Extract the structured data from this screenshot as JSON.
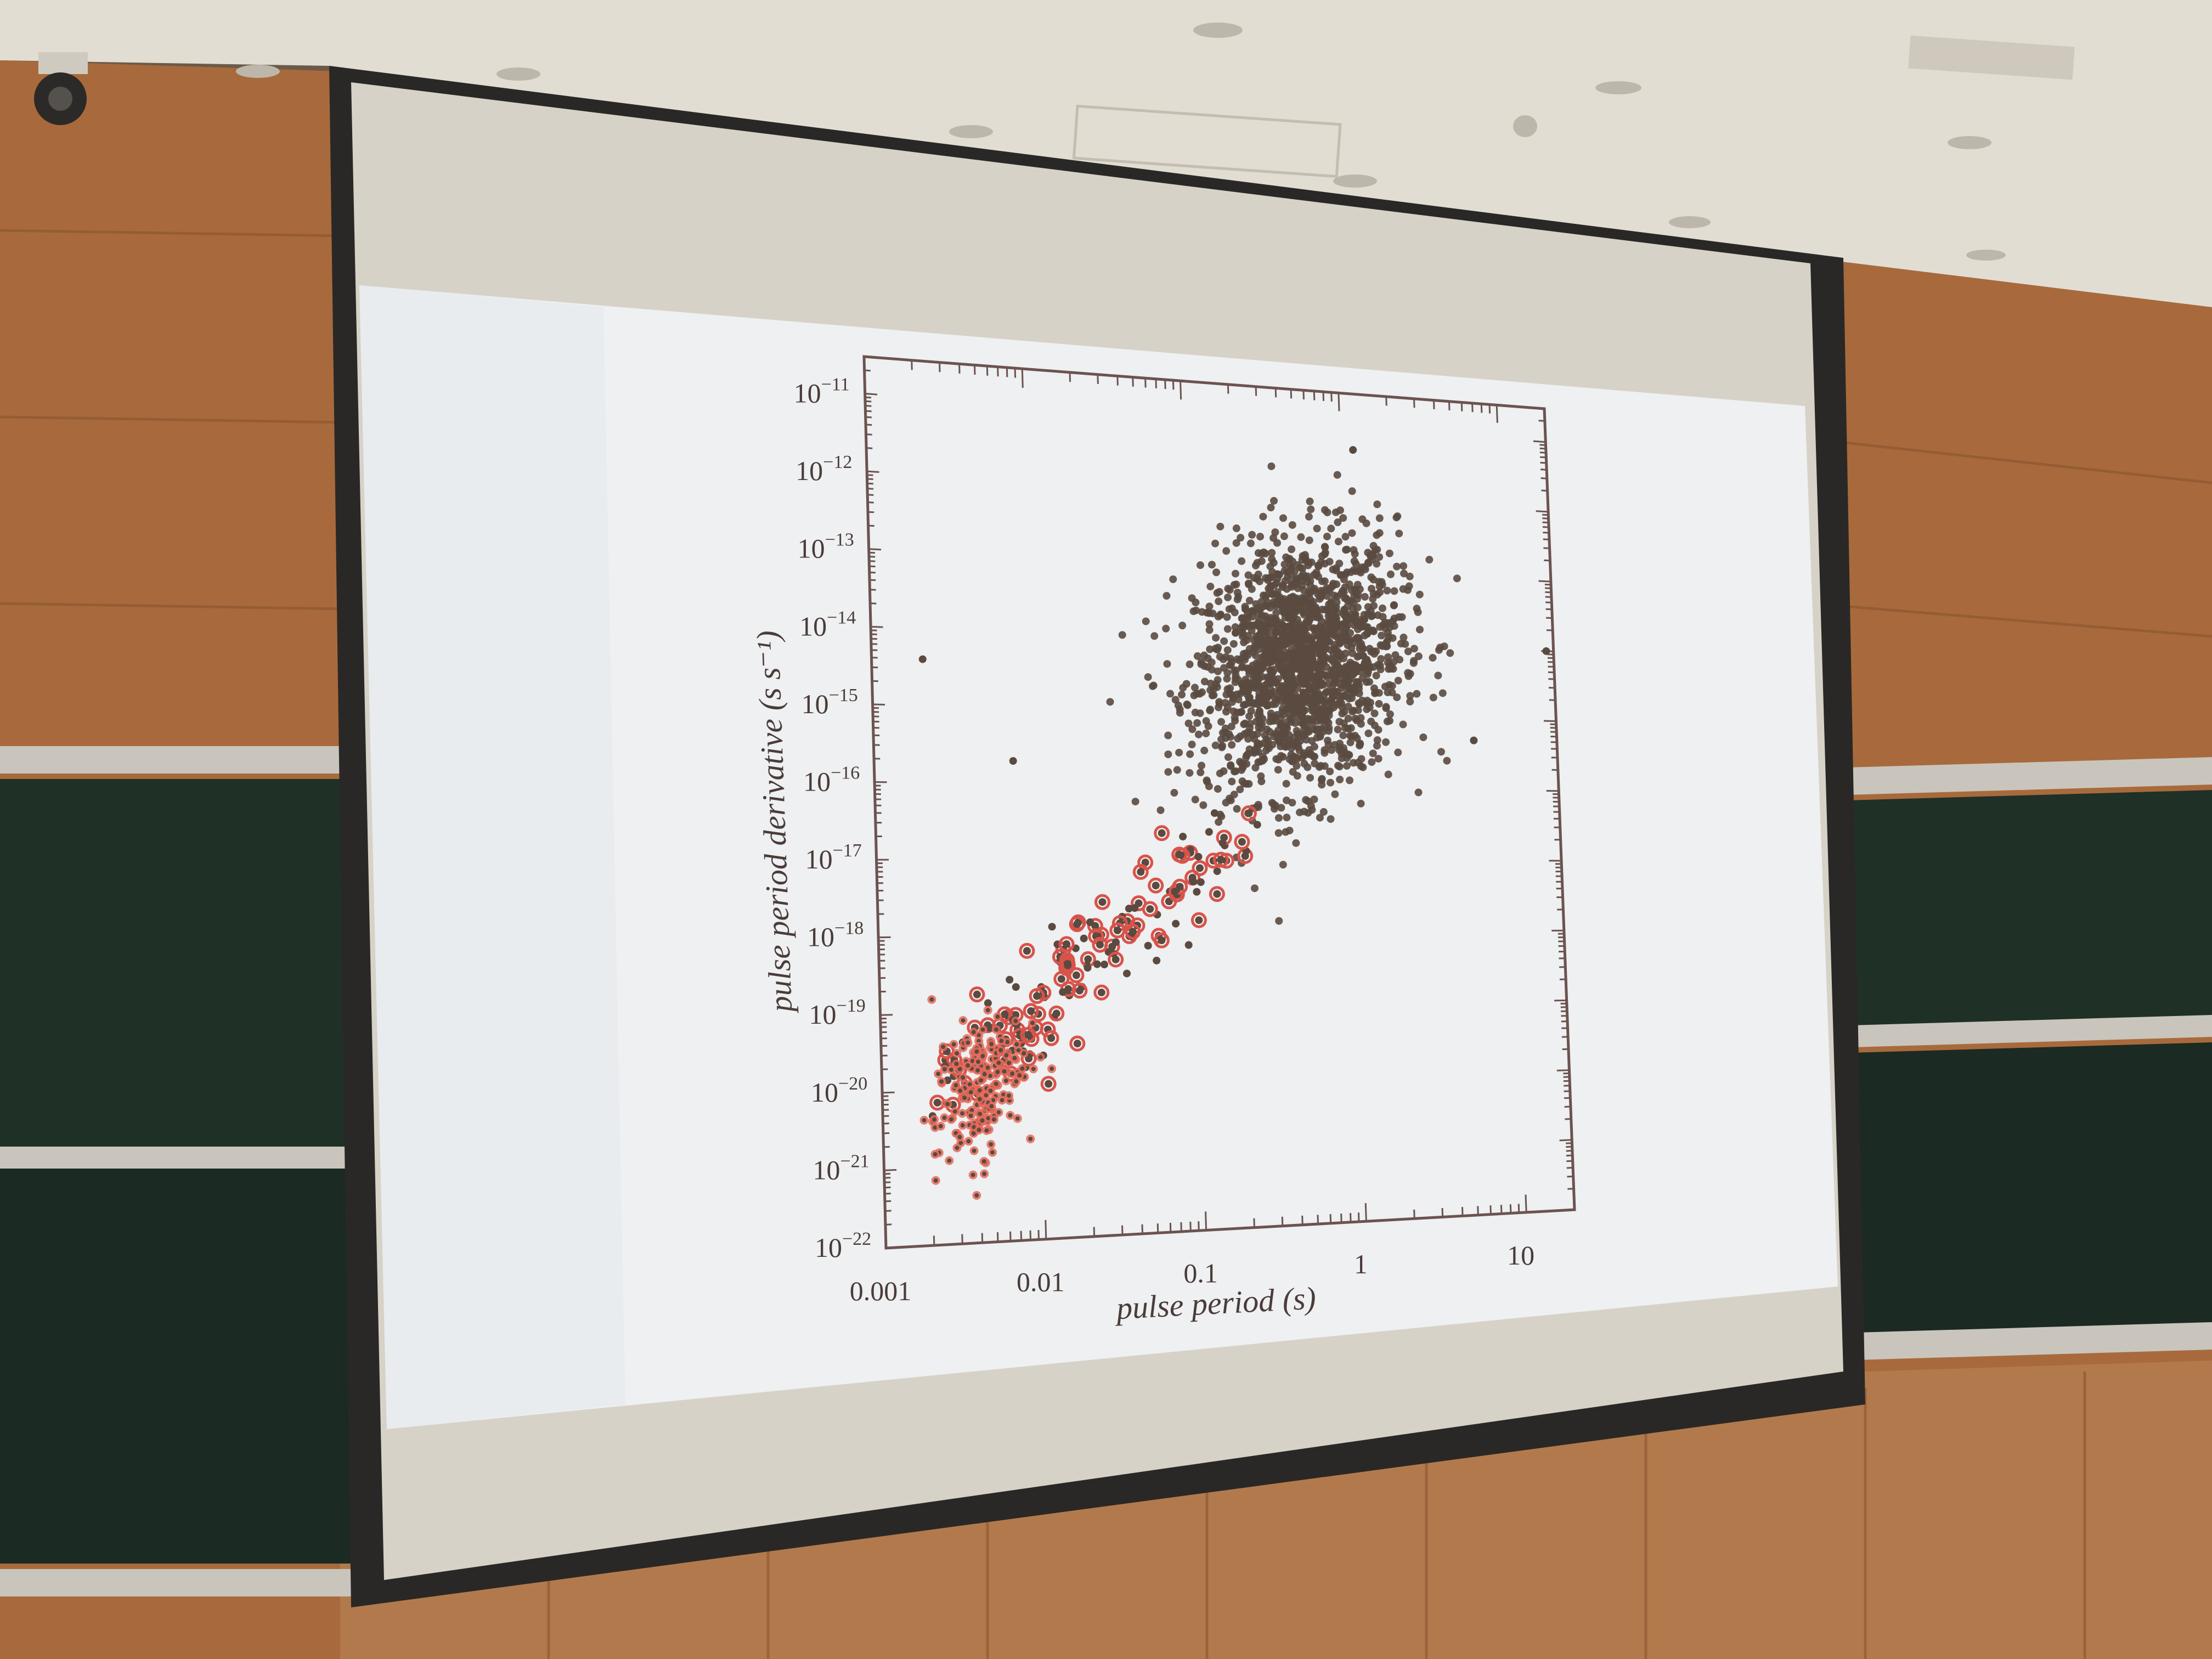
{
  "scene": {
    "description_elements": [
      "lecture-hall-wall",
      "chalkboard-left",
      "chalkboard-right",
      "projection-screen",
      "ceiling-lights",
      "security-camera"
    ],
    "colors": {
      "ceiling": "#e2ddd3",
      "wall_wood": "#a86a3c",
      "wall_wood_dark": "#8a5530",
      "chalkboard": "#1f3027",
      "chalkboard_rail": "#c9c5bd",
      "screen_bezel": "#2a2826",
      "screen_surface": "#eef0f1",
      "screen_border_fabric": "#d6d2c7",
      "lower_wood": "#b27a4c"
    }
  },
  "chart_data": {
    "type": "scatter",
    "xlabel": "pulse period (s)",
    "ylabel": "pulse period derivative (s s⁻¹)",
    "xscale": "log",
    "yscale": "log",
    "xlim": [
      0.001,
      20
    ],
    "ylim": [
      1e-22,
      3e-11
    ],
    "x_ticks": [
      {
        "value": 0.001,
        "label": "0.001"
      },
      {
        "value": 0.01,
        "label": "0.01"
      },
      {
        "value": 0.1,
        "label": "0.1"
      },
      {
        "value": 1,
        "label": "1"
      },
      {
        "value": 10,
        "label": "10"
      }
    ],
    "y_ticks": [
      {
        "value": -22,
        "label": "10",
        "exp": "−22"
      },
      {
        "value": -21,
        "label": "10",
        "exp": "−21"
      },
      {
        "value": -20,
        "label": "10",
        "exp": "−20"
      },
      {
        "value": -19,
        "label": "10",
        "exp": "−19"
      },
      {
        "value": -18,
        "label": "10",
        "exp": "−18"
      },
      {
        "value": -17,
        "label": "10",
        "exp": "−17"
      },
      {
        "value": -16,
        "label": "10",
        "exp": "−16"
      },
      {
        "value": -15,
        "label": "10",
        "exp": "−15"
      },
      {
        "value": -14,
        "label": "10",
        "exp": "−14"
      },
      {
        "value": -13,
        "label": "10",
        "exp": "−13"
      },
      {
        "value": -12,
        "label": "10",
        "exp": "−12"
      },
      {
        "value": -11,
        "label": "10",
        "exp": "−11"
      }
    ],
    "series": [
      {
        "kind": "normal pulsars",
        "color": "#5a4a40",
        "cluster_center": {
          "x": 0.5,
          "y": 5e-15
        },
        "approx_count": 1800
      },
      {
        "kind": "binary pulsars (circled)",
        "color": "#d9534a",
        "cluster_center": {
          "x": 0.004,
          "y": 1e-20
        },
        "approx_count": 200
      }
    ],
    "notable_points": [
      {
        "x": 0.0021,
        "y": 4e-15
      },
      {
        "x": 0.0075,
        "y": 2e-16
      },
      {
        "x": 6,
        "y": 5e-16
      },
      {
        "x": 18,
        "y": 1e-14
      },
      {
        "x": 1.2,
        "y": 5e-12
      }
    ]
  }
}
